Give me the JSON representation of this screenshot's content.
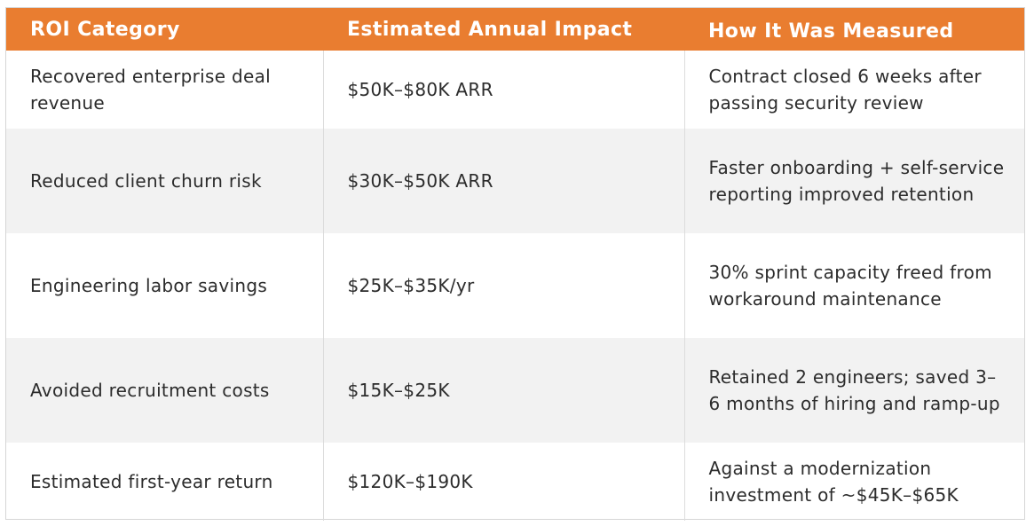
{
  "table": {
    "headers": [
      "ROI Category",
      "Estimated Annual Impact",
      "How It Was Measured"
    ],
    "rows": [
      {
        "category": "Recovered enterprise deal revenue",
        "impact": "$50K–$80K ARR",
        "measure": "Contract closed 6 weeks after passing security review"
      },
      {
        "category": "Reduced client churn risk",
        "impact": "$30K–$50K ARR",
        "measure": "Faster onboarding + self-service reporting improved retention"
      },
      {
        "category": "Engineering labor savings",
        "impact": "$25K–$35K/yr",
        "measure": "30% sprint capacity freed from workaround maintenance"
      },
      {
        "category": "Avoided recruitment costs",
        "impact": "$15K–$25K",
        "measure": "Retained 2 engineers; saved 3–6 months of hiring and ramp-up"
      },
      {
        "category": "Estimated first-year return",
        "impact": "$120K–$190K",
        "measure": "Against a modernization investment of ~$45K–$65K"
      }
    ]
  },
  "colors": {
    "header_bg": "#e97d30",
    "header_text": "#ffffff",
    "row_shade": "#f2f2f2",
    "body_text": "#2c2c2c"
  }
}
